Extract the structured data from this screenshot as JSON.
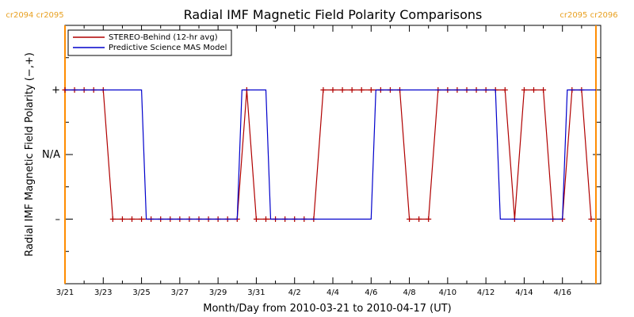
{
  "chart_data": {
    "type": "line",
    "title": "Radial IMF Magnetic Field Polarity Comparisons",
    "xlabel": "Month/Day from 2010-03-21 to 2010-04-17 (UT)",
    "ylabel": "Radial IMF Magnetic Field Polarity (−,+)",
    "y_categories": [
      {
        "label": "+",
        "value": 1
      },
      {
        "label": "N/A",
        "value": 0
      },
      {
        "label": "–",
        "value": -1
      }
    ],
    "ylim": [
      -2,
      2
    ],
    "xlim": [
      "2010-03-21",
      "2010-04-18"
    ],
    "x_ticks": [
      "3/21",
      "3/23",
      "3/25",
      "3/27",
      "3/29",
      "3/31",
      "4/2",
      "4/4",
      "4/6",
      "4/8",
      "4/10",
      "4/12",
      "4/14",
      "4/16"
    ],
    "grid": false,
    "legend_position": "top-left",
    "rotation_labels": {
      "left": "cr2094 cr2095",
      "right": "cr2095 cr2096"
    },
    "rotation_boundaries": [
      "2010-03-21",
      "2010-04-17 18:00"
    ],
    "colors": {
      "stereo": "#b00000",
      "model": "#0000cc",
      "rotation": "#ff8c00"
    },
    "series": [
      {
        "name": "STEREO-Behind (12-hr avg)",
        "marker": "plus",
        "x": [
          "2010-03-21 00:00",
          "2010-03-21 12:00",
          "2010-03-22 00:00",
          "2010-03-22 12:00",
          "2010-03-23 00:00",
          "2010-03-23 12:00",
          "2010-03-24 00:00",
          "2010-03-24 12:00",
          "2010-03-25 00:00",
          "2010-03-25 12:00",
          "2010-03-26 00:00",
          "2010-03-26 12:00",
          "2010-03-27 00:00",
          "2010-03-27 12:00",
          "2010-03-28 00:00",
          "2010-03-28 12:00",
          "2010-03-29 00:00",
          "2010-03-29 12:00",
          "2010-03-30 00:00",
          "2010-03-30 12:00",
          "2010-03-31 00:00",
          "2010-03-31 12:00",
          "2010-04-01 00:00",
          "2010-04-01 12:00",
          "2010-04-02 00:00",
          "2010-04-02 12:00",
          "2010-04-03 00:00",
          "2010-04-03 12:00",
          "2010-04-04 00:00",
          "2010-04-04 12:00",
          "2010-04-05 00:00",
          "2010-04-05 12:00",
          "2010-04-06 00:00",
          "2010-04-06 12:00",
          "2010-04-07 00:00",
          "2010-04-07 12:00",
          "2010-04-08 00:00",
          "2010-04-08 12:00",
          "2010-04-09 00:00",
          "2010-04-09 12:00",
          "2010-04-10 00:00",
          "2010-04-10 12:00",
          "2010-04-11 00:00",
          "2010-04-11 12:00",
          "2010-04-12 00:00",
          "2010-04-12 12:00",
          "2010-04-13 00:00",
          "2010-04-13 12:00",
          "2010-04-14 00:00",
          "2010-04-14 12:00",
          "2010-04-15 00:00",
          "2010-04-15 12:00",
          "2010-04-16 00:00",
          "2010-04-16 12:00",
          "2010-04-17 00:00",
          "2010-04-17 12:00"
        ],
        "values": [
          1,
          1,
          1,
          1,
          1,
          -1,
          -1,
          -1,
          -1,
          -1,
          -1,
          -1,
          -1,
          -1,
          -1,
          -1,
          -1,
          -1,
          -1,
          1,
          -1,
          -1,
          -1,
          -1,
          -1,
          -1,
          -1,
          1,
          1,
          1,
          1,
          1,
          1,
          1,
          1,
          1,
          -1,
          -1,
          -1,
          1,
          1,
          1,
          1,
          1,
          1,
          1,
          1,
          -1,
          1,
          1,
          1,
          -1,
          -1,
          1,
          1,
          -1
        ]
      },
      {
        "name": "Predictive Science MAS Model",
        "marker": "none",
        "x": [
          "2010-03-21 00:00",
          "2010-03-25 00:00",
          "2010-03-25 06:00",
          "2010-03-30 00:00",
          "2010-03-30 06:00",
          "2010-03-31 12:00",
          "2010-03-31 18:00",
          "2010-04-06 00:00",
          "2010-04-06 06:00",
          "2010-04-12 12:00",
          "2010-04-12 18:00",
          "2010-04-16 00:00",
          "2010-04-16 06:00",
          "2010-04-17 18:00"
        ],
        "values": [
          1,
          1,
          -1,
          -1,
          1,
          1,
          -1,
          -1,
          1,
          1,
          -1,
          -1,
          1,
          1
        ]
      }
    ]
  }
}
